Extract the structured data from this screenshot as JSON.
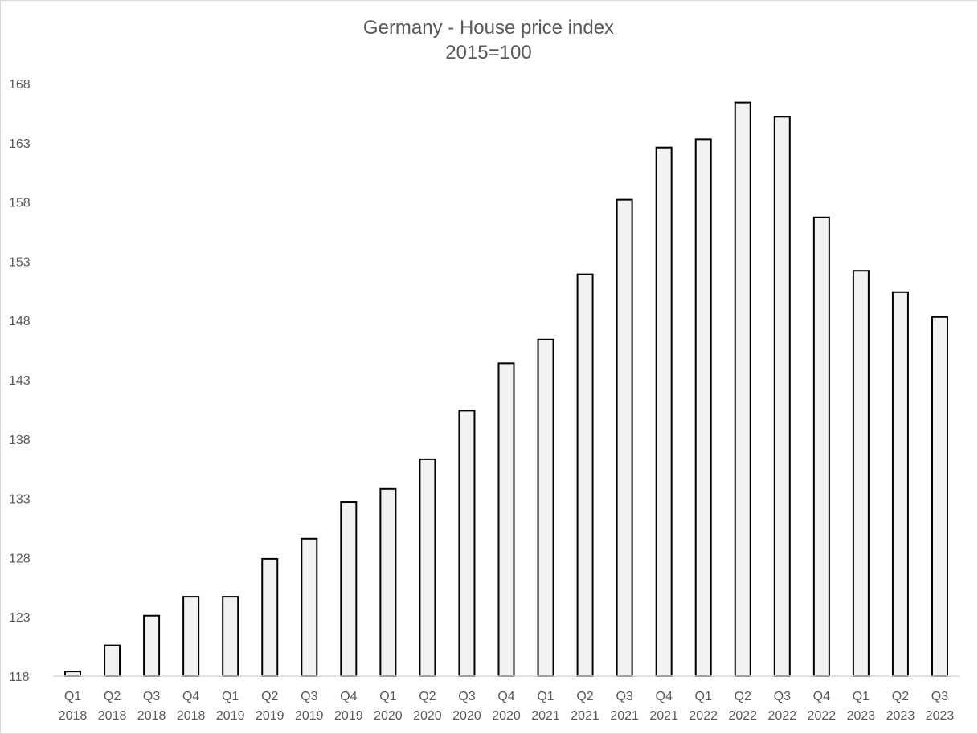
{
  "chart_data": {
    "type": "bar",
    "title": "Germany - House price index",
    "subtitle": "2015=100",
    "xlabel": "",
    "ylabel": "",
    "ylim": [
      118,
      168
    ],
    "y_ticks": [
      118,
      123,
      128,
      133,
      138,
      143,
      148,
      153,
      158,
      163,
      168
    ],
    "grid": false,
    "legend": "none",
    "bar_fill": "#f2f2f2",
    "bar_stroke": "#000000",
    "categories": [
      [
        "Q1",
        "2018"
      ],
      [
        "Q2",
        "2018"
      ],
      [
        "Q3",
        "2018"
      ],
      [
        "Q4",
        "2018"
      ],
      [
        "Q1",
        "2019"
      ],
      [
        "Q2",
        "2019"
      ],
      [
        "Q3",
        "2019"
      ],
      [
        "Q4",
        "2019"
      ],
      [
        "Q1",
        "2020"
      ],
      [
        "Q2",
        "2020"
      ],
      [
        "Q3",
        "2020"
      ],
      [
        "Q4",
        "2020"
      ],
      [
        "Q1",
        "2021"
      ],
      [
        "Q2",
        "2021"
      ],
      [
        "Q3",
        "2021"
      ],
      [
        "Q4",
        "2021"
      ],
      [
        "Q1",
        "2022"
      ],
      [
        "Q2",
        "2022"
      ],
      [
        "Q3",
        "2022"
      ],
      [
        "Q4",
        "2022"
      ],
      [
        "Q1",
        "2023"
      ],
      [
        "Q2",
        "2023"
      ],
      [
        "Q3",
        "2023"
      ]
    ],
    "values": [
      118.4,
      120.6,
      123.1,
      124.7,
      124.7,
      127.9,
      129.6,
      132.7,
      133.8,
      136.3,
      140.4,
      144.4,
      146.4,
      151.9,
      158.2,
      162.6,
      163.3,
      166.4,
      165.2,
      156.7,
      152.2,
      150.4,
      148.3
    ]
  }
}
